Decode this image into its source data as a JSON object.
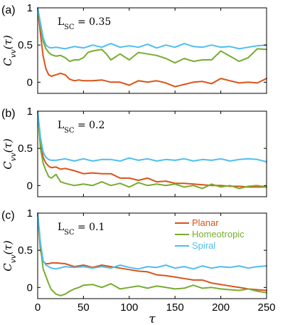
{
  "figure": {
    "ylabel": "C_vv(τ)",
    "xlabel": "τ",
    "colors": {
      "Planar": "#d95319",
      "Homeotropic": "#77ac30",
      "Spiral": "#4dbeee"
    }
  },
  "chart_data": [
    {
      "type": "line",
      "panel_label": "(a)",
      "annotation": "L_SC = 0.35",
      "xlim": [
        0,
        250
      ],
      "ylim": [
        -0.15,
        1.0
      ],
      "x_ticks": [
        0,
        50,
        100,
        150,
        200,
        250
      ],
      "y_ticks": [
        0,
        0.5,
        1
      ],
      "ylabel": "C_vv(τ)",
      "series": [
        {
          "name": "Planar",
          "color": "#d95319",
          "x": [
            0,
            3,
            6,
            9,
            12,
            15,
            20,
            25,
            30,
            35,
            40,
            45,
            50,
            60,
            70,
            80,
            90,
            100,
            110,
            120,
            130,
            140,
            150,
            160,
            170,
            180,
            190,
            200,
            210,
            220,
            230,
            240,
            250
          ],
          "y": [
            1.0,
            0.65,
            0.35,
            0.18,
            0.1,
            0.08,
            0.1,
            0.12,
            0.1,
            0.04,
            0.02,
            0.03,
            0.02,
            0.02,
            0.03,
            0.0,
            0.0,
            -0.04,
            0.02,
            0.0,
            0.02,
            -0.01,
            -0.06,
            -0.03,
            0.0,
            0.01,
            -0.02,
            0.05,
            0.02,
            -0.01,
            0.0,
            -0.01,
            0.05
          ]
        },
        {
          "name": "Homeotropic",
          "color": "#77ac30",
          "x": [
            0,
            3,
            6,
            9,
            12,
            15,
            20,
            25,
            30,
            35,
            40,
            45,
            50,
            55,
            60,
            70,
            75,
            80,
            90,
            100,
            110,
            120,
            130,
            140,
            150,
            160,
            170,
            180,
            190,
            200,
            210,
            220,
            230,
            240,
            250
          ],
          "y": [
            1.0,
            0.75,
            0.55,
            0.45,
            0.4,
            0.37,
            0.35,
            0.36,
            0.33,
            0.28,
            0.3,
            0.3,
            0.33,
            0.4,
            0.42,
            0.44,
            0.38,
            0.3,
            0.38,
            0.3,
            0.4,
            0.38,
            0.36,
            0.32,
            0.26,
            0.32,
            0.28,
            0.3,
            0.3,
            0.42,
            0.35,
            0.28,
            0.33,
            0.45,
            0.44
          ]
        },
        {
          "name": "Spiral",
          "color": "#4dbeee",
          "x": [
            0,
            3,
            6,
            9,
            12,
            15,
            20,
            30,
            40,
            50,
            60,
            70,
            80,
            90,
            100,
            110,
            120,
            130,
            140,
            150,
            160,
            170,
            180,
            190,
            200,
            210,
            220,
            230,
            240,
            250
          ],
          "y": [
            1.0,
            0.8,
            0.6,
            0.5,
            0.47,
            0.46,
            0.47,
            0.45,
            0.48,
            0.46,
            0.5,
            0.47,
            0.52,
            0.47,
            0.49,
            0.47,
            0.51,
            0.46,
            0.5,
            0.47,
            0.52,
            0.48,
            0.47,
            0.5,
            0.47,
            0.48,
            0.45,
            0.47,
            0.49,
            0.5
          ]
        }
      ]
    },
    {
      "type": "line",
      "panel_label": "(b)",
      "annotation": "L_SC = 0.2",
      "xlim": [
        0,
        250
      ],
      "ylim": [
        -0.15,
        1.0
      ],
      "x_ticks": [
        0,
        50,
        100,
        150,
        200,
        250
      ],
      "y_ticks": [
        0,
        0.5,
        1
      ],
      "ylabel": "C_vv(τ)",
      "series": [
        {
          "name": "Planar",
          "color": "#d95319",
          "x": [
            0,
            3,
            6,
            9,
            12,
            15,
            20,
            25,
            30,
            40,
            50,
            60,
            70,
            80,
            90,
            100,
            110,
            120,
            130,
            140,
            150,
            160,
            170,
            180,
            190,
            200,
            210,
            220,
            230,
            240,
            250
          ],
          "y": [
            1.0,
            0.6,
            0.38,
            0.3,
            0.26,
            0.24,
            0.25,
            0.22,
            0.23,
            0.2,
            0.16,
            0.17,
            0.16,
            0.16,
            0.1,
            0.1,
            0.07,
            0.1,
            0.05,
            0.06,
            0.03,
            0.03,
            0.02,
            0.01,
            0.0,
            0.0,
            -0.01,
            -0.01,
            -0.02,
            -0.02,
            -0.02
          ]
        },
        {
          "name": "Homeotropic",
          "color": "#77ac30",
          "x": [
            0,
            3,
            6,
            9,
            12,
            15,
            20,
            25,
            30,
            40,
            50,
            60,
            70,
            80,
            90,
            100,
            110,
            120,
            130,
            140,
            150,
            160,
            170,
            180,
            190,
            200,
            210,
            220,
            230,
            240,
            250
          ],
          "y": [
            1.0,
            0.5,
            0.3,
            0.2,
            0.12,
            0.1,
            0.15,
            0.05,
            0.03,
            0.0,
            0.02,
            0.0,
            0.05,
            0.0,
            0.03,
            -0.02,
            0.04,
            0.0,
            0.02,
            0.0,
            0.02,
            -0.02,
            0.0,
            -0.04,
            0.02,
            -0.02,
            0.0,
            -0.04,
            -0.01,
            0.0,
            -0.02
          ]
        },
        {
          "name": "Spiral",
          "color": "#4dbeee",
          "x": [
            0,
            3,
            6,
            9,
            12,
            15,
            20,
            30,
            40,
            50,
            60,
            70,
            80,
            90,
            100,
            110,
            120,
            130,
            140,
            150,
            160,
            170,
            180,
            190,
            200,
            210,
            220,
            230,
            240,
            250
          ],
          "y": [
            1.0,
            0.65,
            0.45,
            0.38,
            0.35,
            0.34,
            0.34,
            0.36,
            0.33,
            0.36,
            0.33,
            0.35,
            0.35,
            0.33,
            0.37,
            0.34,
            0.36,
            0.33,
            0.35,
            0.34,
            0.36,
            0.33,
            0.35,
            0.34,
            0.36,
            0.33,
            0.35,
            0.36,
            0.35,
            0.32
          ]
        }
      ]
    },
    {
      "type": "line",
      "panel_label": "(c)",
      "annotation": "L_SC = 0.1",
      "xlim": [
        0,
        250
      ],
      "ylim": [
        -0.15,
        1.0
      ],
      "x_ticks": [
        0,
        50,
        100,
        150,
        200,
        250
      ],
      "y_ticks": [
        0,
        0.5,
        1
      ],
      "xlabel": "τ",
      "ylabel": "C_vv(τ)",
      "legend": "top-right",
      "series": [
        {
          "name": "Planar",
          "color": "#d95319",
          "x": [
            0,
            3,
            6,
            9,
            12,
            15,
            20,
            30,
            40,
            50,
            60,
            70,
            80,
            90,
            100,
            110,
            120,
            130,
            140,
            150,
            160,
            170,
            180,
            190,
            200,
            210,
            220,
            230,
            240,
            250
          ],
          "y": [
            1.0,
            0.5,
            0.35,
            0.32,
            0.32,
            0.33,
            0.33,
            0.32,
            0.28,
            0.3,
            0.27,
            0.3,
            0.28,
            0.26,
            0.24,
            0.22,
            0.21,
            0.17,
            0.16,
            0.14,
            0.12,
            0.1,
            0.1,
            0.06,
            0.04,
            0.02,
            0.0,
            -0.02,
            -0.03,
            -0.04
          ]
        },
        {
          "name": "Homeotropic",
          "color": "#77ac30",
          "x": [
            0,
            3,
            6,
            9,
            12,
            15,
            20,
            25,
            30,
            35,
            40,
            45,
            50,
            60,
            70,
            80,
            90,
            100,
            110,
            120,
            130,
            140,
            150,
            160,
            170,
            180,
            190,
            200,
            210,
            220,
            230,
            240,
            250
          ],
          "y": [
            1.0,
            0.55,
            0.25,
            0.15,
            0.05,
            -0.03,
            -0.09,
            -0.11,
            -0.09,
            -0.05,
            -0.02,
            0.0,
            0.03,
            0.04,
            0.0,
            0.05,
            -0.02,
            0.0,
            0.02,
            -0.01,
            0.02,
            0.0,
            -0.02,
            -0.01,
            0.03,
            -0.01,
            0.0,
            -0.02,
            -0.03,
            -0.04,
            -0.02,
            -0.05,
            -0.07
          ]
        },
        {
          "name": "Spiral",
          "color": "#4dbeee",
          "x": [
            0,
            3,
            6,
            9,
            12,
            15,
            20,
            30,
            40,
            50,
            60,
            70,
            80,
            90,
            100,
            110,
            120,
            130,
            140,
            150,
            160,
            170,
            180,
            190,
            200,
            210,
            220,
            230,
            240,
            250
          ],
          "y": [
            1.0,
            0.6,
            0.36,
            0.3,
            0.28,
            0.26,
            0.25,
            0.28,
            0.27,
            0.28,
            0.26,
            0.28,
            0.26,
            0.3,
            0.27,
            0.25,
            0.28,
            0.27,
            0.3,
            0.26,
            0.28,
            0.25,
            0.29,
            0.26,
            0.28,
            0.27,
            0.29,
            0.26,
            0.28,
            0.29
          ]
        }
      ]
    }
  ]
}
